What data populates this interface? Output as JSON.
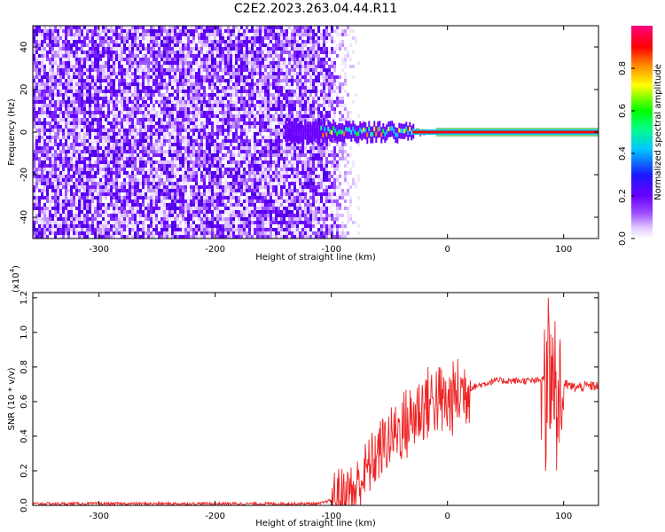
{
  "title": "C2E2.2023.263.04.44.R11",
  "chart_data": [
    {
      "type": "heatmap",
      "xlabel": "Height of straight line (km)",
      "ylabel": "Frequency (Hz)",
      "xlim": [
        -357,
        130
      ],
      "ylim": [
        -50,
        50
      ],
      "xticks": [
        -300,
        -200,
        -100,
        0,
        100
      ],
      "yticks": [
        -40,
        -20,
        0,
        20,
        40
      ],
      "colorbar": {
        "label": "Normalized spectral amplitude",
        "range": [
          0,
          1
        ],
        "ticks": [
          "0.0",
          "0.2",
          "0.4",
          "0.6",
          "0.8"
        ],
        "colormap": [
          "#ffffff",
          "#b56bff",
          "#6a00ff",
          "#0000ff",
          "#00c8ff",
          "#00ff00",
          "#ffff00",
          "#ff8000",
          "#ff0000",
          "#ff0080"
        ]
      },
      "noise_region_x": [
        -357,
        -107
      ],
      "signal_line_y": 0
    },
    {
      "type": "line",
      "xlabel": "Height of straight line (km)",
      "ylabel": "SNR (10 * v/v)",
      "y_multiplier": "(x10",
      "y_multiplier_exp": "4",
      "xlim": [
        -357,
        130
      ],
      "ylim": [
        0,
        1.23
      ],
      "xticks": [
        -300,
        -200,
        -100,
        0,
        100
      ],
      "yticks": [
        "0.0",
        "0.2",
        "0.4",
        "0.6",
        "0.8",
        "1.0",
        "1.2"
      ],
      "series": [
        {
          "color": "#ee2222",
          "x": [
            -357,
            -300,
            -200,
            -110,
            -100,
            -90,
            -80,
            -70,
            -60,
            -55,
            -50,
            -45,
            -40,
            -35,
            -30,
            -25,
            -20,
            -15,
            -10,
            -5,
            0,
            5,
            10,
            20,
            30,
            40,
            60,
            80,
            85,
            90,
            95,
            100,
            105,
            110,
            120,
            130
          ],
          "y": [
            0.01,
            0.01,
            0.01,
            0.01,
            0.03,
            0.05,
            0.08,
            0.2,
            0.3,
            0.35,
            0.38,
            0.42,
            0.45,
            0.47,
            0.5,
            0.55,
            0.58,
            0.6,
            0.62,
            0.6,
            0.58,
            0.62,
            0.65,
            0.68,
            0.7,
            0.72,
            0.72,
            0.72,
            0.74,
            0.73,
            0.7,
            0.7,
            0.69,
            0.68,
            0.69,
            0.69
          ]
        }
      ]
    }
  ]
}
